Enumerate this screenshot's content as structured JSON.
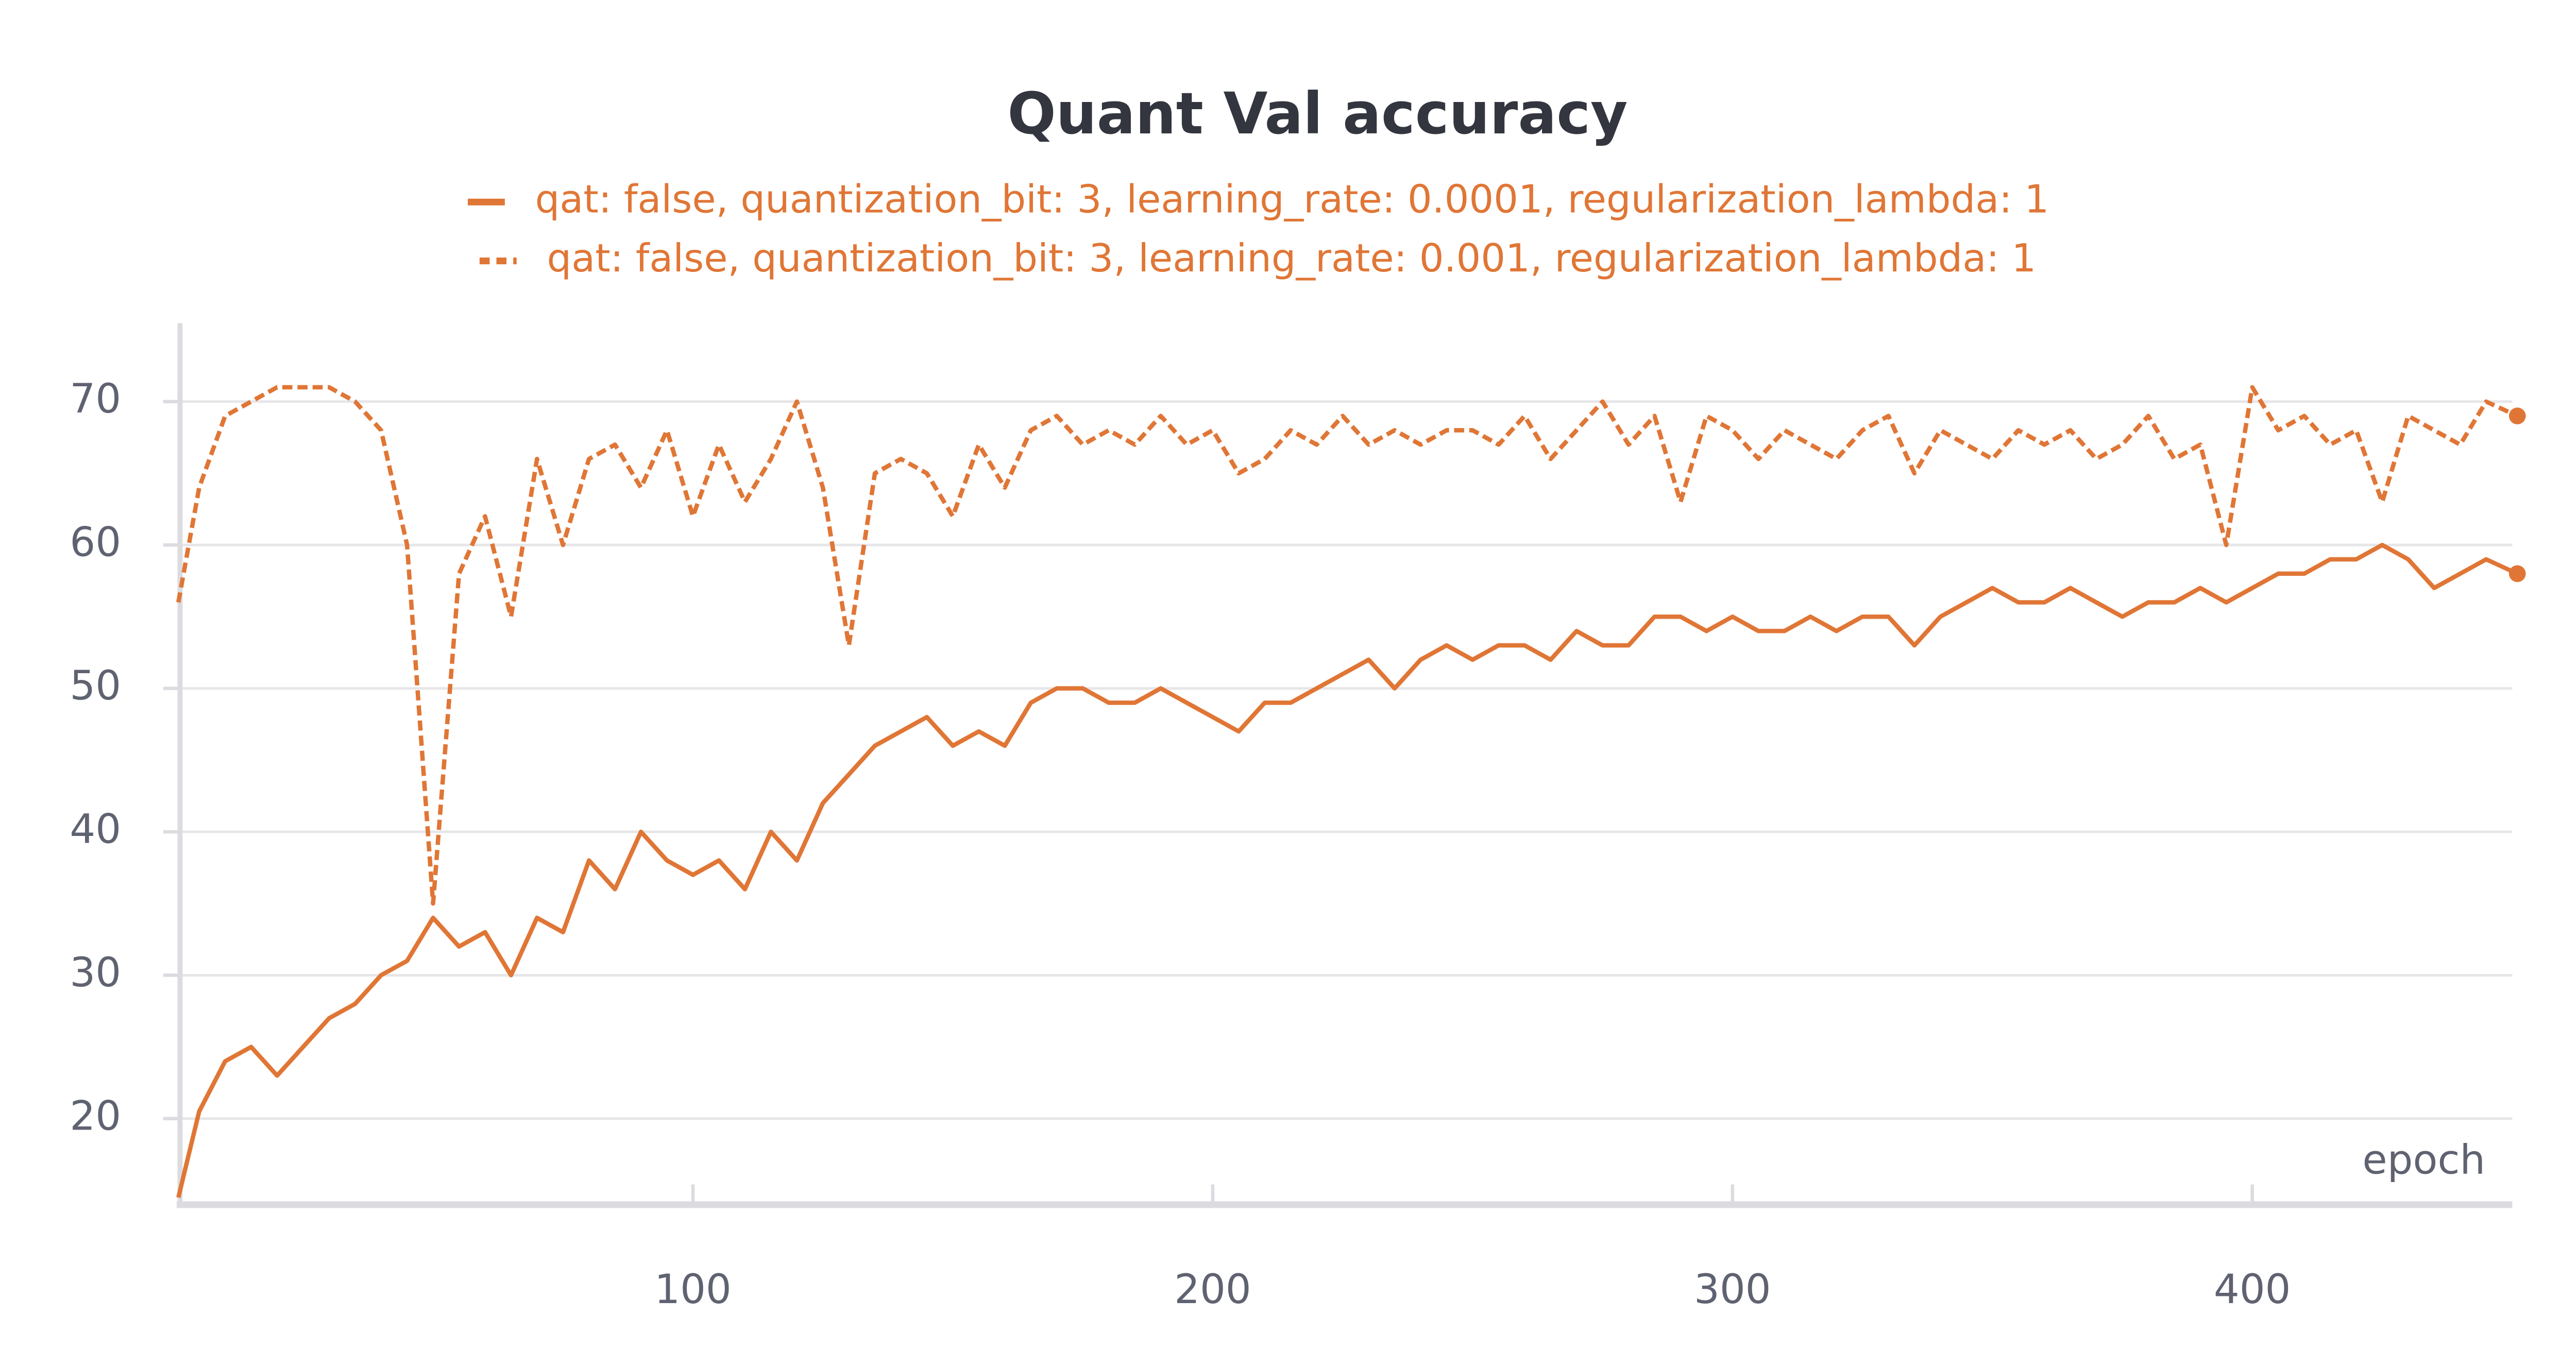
{
  "chart_data": {
    "type": "line",
    "title": "Quant Val accuracy",
    "x_label": "epoch",
    "x": [
      1,
      5,
      10,
      15,
      20,
      25,
      30,
      35,
      40,
      45,
      50,
      55,
      60,
      65,
      70,
      75,
      80,
      85,
      90,
      95,
      100,
      105,
      110,
      115,
      120,
      125,
      130,
      135,
      140,
      145,
      150,
      155,
      160,
      165,
      170,
      175,
      180,
      185,
      190,
      195,
      200,
      205,
      210,
      215,
      220,
      225,
      230,
      235,
      240,
      245,
      250,
      255,
      260,
      265,
      270,
      275,
      280,
      285,
      290,
      295,
      300,
      305,
      310,
      315,
      320,
      325,
      330,
      335,
      340,
      345,
      350,
      355,
      360,
      365,
      370,
      375,
      380,
      385,
      390,
      395,
      400,
      405,
      410,
      415,
      420,
      425,
      430,
      435,
      440,
      445,
      451
    ],
    "series": [
      {
        "name": "qat: false, quantization_bit: 3, learning_rate: 0.0001, regularization_lambda: 1",
        "color": "#e07636",
        "dash": false,
        "values": [
          14.5,
          20.5,
          24,
          25,
          23,
          25,
          27,
          28,
          30,
          31,
          34,
          32,
          33,
          30,
          34,
          33,
          38,
          36,
          40,
          38,
          37,
          38,
          36,
          40,
          38,
          42,
          44,
          46,
          47,
          48,
          46,
          47,
          46,
          49,
          50,
          50,
          49,
          49,
          50,
          49,
          48,
          47,
          49,
          49,
          50,
          51,
          52,
          50,
          52,
          53,
          52,
          53,
          53,
          52,
          54,
          53,
          53,
          55,
          55,
          54,
          55,
          54,
          54,
          55,
          54,
          55,
          55,
          53,
          55,
          56,
          57,
          56,
          56,
          57,
          56,
          55,
          56,
          56,
          57,
          56,
          57,
          58,
          58,
          59,
          59,
          60,
          59,
          57,
          58,
          59,
          58
        ]
      },
      {
        "name": "qat: false, quantization_bit: 3, learning_rate: 0.001, regularization_lambda: 1",
        "color": "#e07636",
        "dash": true,
        "values": [
          56,
          64,
          69,
          70,
          71,
          71,
          71,
          70,
          68,
          60,
          35,
          58,
          62,
          55,
          66,
          60,
          66,
          67,
          64,
          68,
          62,
          67,
          63,
          66,
          70,
          64,
          53,
          65,
          66,
          65,
          62,
          67,
          64,
          68,
          69,
          67,
          68,
          67,
          69,
          67,
          68,
          65,
          66,
          68,
          67,
          69,
          67,
          68,
          67,
          68,
          68,
          67,
          69,
          66,
          68,
          70,
          67,
          69,
          63,
          69,
          68,
          66,
          68,
          67,
          66,
          68,
          69,
          65,
          68,
          67,
          66,
          68,
          67,
          68,
          66,
          67,
          69,
          66,
          67,
          60,
          71,
          68,
          69,
          67,
          68,
          63,
          69,
          68,
          67,
          70,
          69
        ]
      }
    ],
    "xlim": [
      1,
      451
    ],
    "ylim": [
      14,
      75
    ],
    "xticks": [
      100,
      200,
      300,
      400
    ],
    "yticks": [
      20,
      30,
      40,
      50,
      60,
      70
    ],
    "grid": true,
    "end_markers": true
  }
}
